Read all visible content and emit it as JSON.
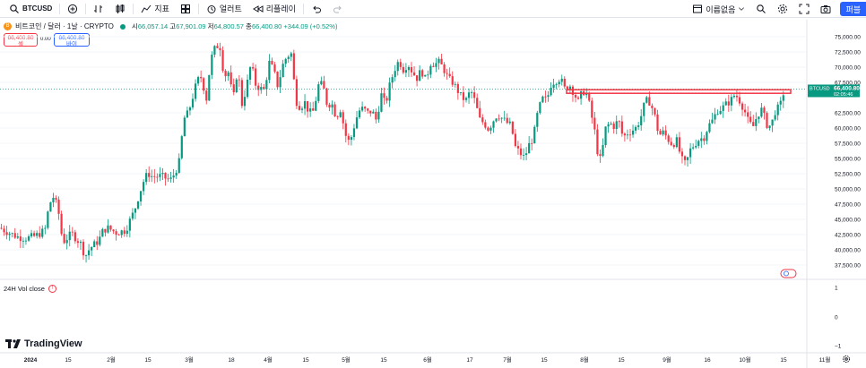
{
  "toolbar": {
    "symbol": "BTCUSD",
    "indicators_label": "지표",
    "alerts_label": "얼러트",
    "replay_label": "리플레이",
    "layout_name": "이름없음",
    "publish_label": "퍼블"
  },
  "legend": {
    "badge": "B",
    "title": "비트코인 / 달러 · 1날 · CRYPTO",
    "open_key": "시",
    "open": "66,057.14",
    "high_key": "고",
    "high": "67,901.09",
    "low_key": "저",
    "low": "64,800.57",
    "close_key": "종",
    "close": "66,400.80",
    "change": "+344.09 (+0.52%)"
  },
  "trade": {
    "sell_price": "66,400.80",
    "sell_label": "셀",
    "spread": "0.00",
    "buy_price": "66,400.80",
    "buy_label": "바이"
  },
  "price_axis": {
    "labels": [
      "75,000.00",
      "72,500.00",
      "70,000.00",
      "67,500.00",
      "62,500.00",
      "60,000.00",
      "57,500.00",
      "55,000.00",
      "52,500.00",
      "50,000.00",
      "47,500.00",
      "45,000.00",
      "42,500.00",
      "40,000.00",
      "37,500.00"
    ],
    "last_symbol": "BTCUSD",
    "last_price": "66,400.80",
    "countdown": "02:05:46"
  },
  "volume_pane": {
    "label": "24H Vol close",
    "axis_labels": [
      "1",
      "0",
      "−1"
    ]
  },
  "time_axis": {
    "labels": [
      "2024",
      "15",
      "2월",
      "15",
      "3월",
      "18",
      "4월",
      "15",
      "5월",
      "15",
      "6월",
      "17",
      "7월",
      "15",
      "8월",
      "15",
      "9월",
      "16",
      "10월",
      "15",
      "11월"
    ]
  },
  "branding": {
    "name": "TradingView"
  },
  "colors": {
    "up": "#089981",
    "down": "#f23645",
    "line": "#f23645",
    "accent": "#2962ff"
  },
  "chart_data": {
    "type": "candlestick",
    "interval": "1D",
    "ylim": [
      35000,
      77500
    ],
    "last_price": 66400.8,
    "horizontal_line": 66000,
    "path": [
      [
        0,
        43600
      ],
      [
        10,
        42800
      ],
      [
        20,
        42100
      ],
      [
        30,
        41900
      ],
      [
        40,
        42300
      ],
      [
        50,
        43200
      ],
      [
        55,
        47500
      ],
      [
        60,
        48800
      ],
      [
        65,
        46500
      ],
      [
        70,
        41200
      ],
      [
        80,
        42700
      ],
      [
        90,
        41000
      ],
      [
        95,
        38900
      ],
      [
        100,
        40200
      ],
      [
        110,
        41500
      ],
      [
        115,
        43200
      ],
      [
        120,
        43600
      ],
      [
        130,
        42800
      ],
      [
        140,
        43200
      ],
      [
        150,
        46500
      ],
      [
        155,
        49000
      ],
      [
        160,
        51200
      ],
      [
        165,
        52600
      ],
      [
        170,
        52000
      ],
      [
        180,
        52100
      ],
      [
        190,
        51400
      ],
      [
        195,
        52600
      ],
      [
        200,
        54500
      ],
      [
        205,
        61500
      ],
      [
        210,
        62500
      ],
      [
        220,
        67800
      ],
      [
        225,
        68400
      ],
      [
        230,
        64500
      ],
      [
        235,
        71200
      ],
      [
        240,
        73200
      ],
      [
        245,
        73800
      ],
      [
        250,
        68500
      ],
      [
        255,
        69200
      ],
      [
        260,
        64500
      ],
      [
        265,
        69800
      ],
      [
        270,
        63800
      ],
      [
        275,
        66800
      ],
      [
        280,
        70600
      ],
      [
        285,
        67200
      ],
      [
        290,
        66500
      ],
      [
        295,
        66200
      ],
      [
        300,
        70800
      ],
      [
        305,
        69600
      ],
      [
        310,
        66800
      ],
      [
        315,
        70200
      ],
      [
        320,
        71800
      ],
      [
        325,
        72200
      ],
      [
        330,
        64500
      ],
      [
        335,
        63400
      ],
      [
        340,
        64200
      ],
      [
        345,
        62500
      ],
      [
        350,
        62800
      ],
      [
        355,
        67000
      ],
      [
        360,
        67200
      ],
      [
        365,
        63800
      ],
      [
        370,
        64100
      ],
      [
        375,
        61800
      ],
      [
        380,
        63200
      ],
      [
        385,
        59000
      ],
      [
        390,
        57500
      ],
      [
        395,
        60300
      ],
      [
        400,
        62800
      ],
      [
        405,
        63200
      ],
      [
        410,
        62500
      ],
      [
        415,
        62800
      ],
      [
        420,
        61200
      ],
      [
        425,
        65600
      ],
      [
        430,
        63800
      ],
      [
        435,
        67200
      ],
      [
        440,
        69600
      ],
      [
        445,
        71100
      ],
      [
        450,
        69600
      ],
      [
        455,
        70600
      ],
      [
        460,
        69200
      ],
      [
        465,
        68200
      ],
      [
        470,
        69500
      ],
      [
        475,
        67800
      ],
      [
        480,
        70700
      ],
      [
        485,
        70500
      ],
      [
        490,
        70800
      ],
      [
        495,
        69700
      ],
      [
        500,
        68100
      ],
      [
        505,
        67500
      ],
      [
        510,
        66300
      ],
      [
        515,
        65000
      ],
      [
        520,
        64600
      ],
      [
        525,
        66200
      ],
      [
        530,
        64300
      ],
      [
        535,
        61400
      ],
      [
        540,
        60800
      ],
      [
        545,
        59800
      ],
      [
        550,
        61200
      ],
      [
        555,
        62300
      ],
      [
        560,
        61600
      ],
      [
        565,
        60900
      ],
      [
        570,
        60400
      ],
      [
        575,
        56800
      ],
      [
        580,
        55900
      ],
      [
        585,
        55100
      ],
      [
        590,
        57200
      ],
      [
        595,
        58500
      ],
      [
        600,
        62700
      ],
      [
        605,
        64800
      ],
      [
        610,
        64600
      ],
      [
        615,
        67400
      ],
      [
        620,
        67800
      ],
      [
        625,
        68200
      ],
      [
        630,
        66400
      ],
      [
        635,
        67200
      ],
      [
        640,
        65800
      ],
      [
        645,
        64300
      ],
      [
        650,
        66100
      ],
      [
        655,
        65600
      ],
      [
        660,
        61900
      ],
      [
        665,
        58200
      ],
      [
        668,
        54000
      ],
      [
        672,
        56400
      ],
      [
        675,
        59800
      ],
      [
        680,
        60800
      ],
      [
        685,
        60300
      ],
      [
        690,
        61300
      ],
      [
        695,
        58400
      ],
      [
        700,
        59200
      ],
      [
        705,
        59600
      ],
      [
        710,
        60100
      ],
      [
        715,
        61900
      ],
      [
        720,
        64500
      ],
      [
        725,
        64300
      ],
      [
        730,
        62200
      ],
      [
        735,
        58800
      ],
      [
        740,
        59300
      ],
      [
        745,
        58200
      ],
      [
        750,
        57300
      ],
      [
        755,
        57900
      ],
      [
        760,
        54900
      ],
      [
        765,
        54000
      ],
      [
        770,
        56400
      ],
      [
        775,
        57400
      ],
      [
        780,
        58200
      ],
      [
        785,
        58400
      ],
      [
        790,
        60300
      ],
      [
        795,
        61300
      ],
      [
        800,
        62900
      ],
      [
        805,
        63200
      ],
      [
        810,
        63900
      ],
      [
        815,
        64500
      ],
      [
        820,
        65600
      ],
      [
        825,
        64500
      ],
      [
        830,
        63100
      ],
      [
        835,
        60900
      ],
      [
        840,
        60200
      ],
      [
        845,
        62200
      ],
      [
        850,
        63100
      ],
      [
        855,
        60600
      ],
      [
        860,
        60300
      ],
      [
        865,
        62900
      ],
      [
        870,
        63500
      ],
      [
        875,
        66400
      ]
    ]
  }
}
